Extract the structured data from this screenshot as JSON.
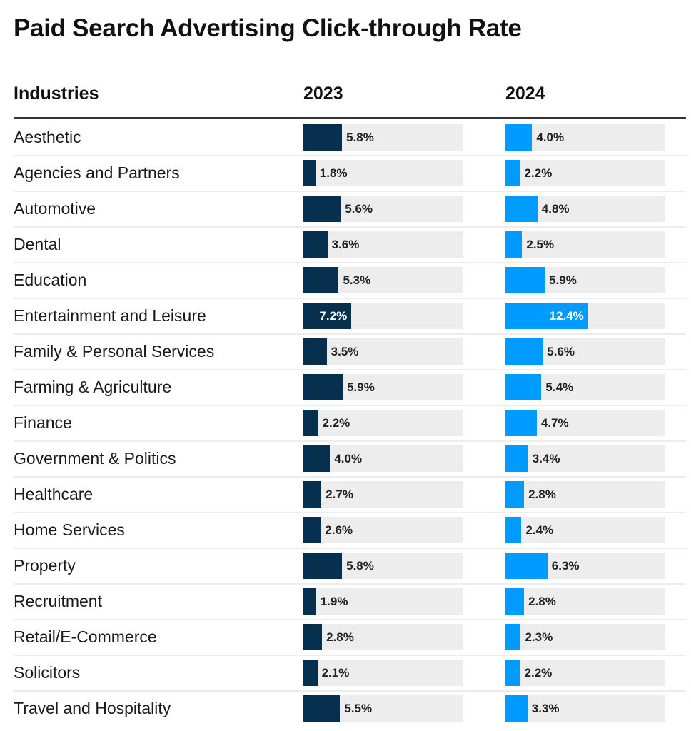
{
  "chart_data": {
    "type": "table",
    "title": "Paid Search Advertising Click-through Rate",
    "columns": [
      "Industries",
      "2023",
      "2024"
    ],
    "scale_max": 24,
    "unit": "%",
    "colors": {
      "2023": "#06304e",
      "2024": "#009bff",
      "track": "#ededed"
    },
    "rows": [
      {
        "industry": "Aesthetic",
        "v2023": 5.8,
        "v2024": 4.0
      },
      {
        "industry": "Agencies and Partners",
        "v2023": 1.8,
        "v2024": 2.2
      },
      {
        "industry": "Automotive",
        "v2023": 5.6,
        "v2024": 4.8
      },
      {
        "industry": "Dental",
        "v2023": 3.6,
        "v2024": 2.5
      },
      {
        "industry": "Education",
        "v2023": 5.3,
        "v2024": 5.9
      },
      {
        "industry": "Entertainment and Leisure",
        "v2023": 7.2,
        "v2024": 12.4
      },
      {
        "industry": "Family & Personal Services",
        "v2023": 3.5,
        "v2024": 5.6
      },
      {
        "industry": "Farming & Agriculture",
        "v2023": 5.9,
        "v2024": 5.4
      },
      {
        "industry": "Finance",
        "v2023": 2.2,
        "v2024": 4.7
      },
      {
        "industry": "Government & Politics",
        "v2023": 4.0,
        "v2024": 3.4
      },
      {
        "industry": "Healthcare",
        "v2023": 2.7,
        "v2024": 2.8
      },
      {
        "industry": "Home Services",
        "v2023": 2.6,
        "v2024": 2.4
      },
      {
        "industry": "Property",
        "v2023": 5.8,
        "v2024": 6.3
      },
      {
        "industry": "Recruitment",
        "v2023": 1.9,
        "v2024": 2.8
      },
      {
        "industry": "Retail/E-Commerce",
        "v2023": 2.8,
        "v2024": 2.3
      },
      {
        "industry": "Solicitors",
        "v2023": 2.1,
        "v2024": 2.2
      },
      {
        "industry": "Travel and Hospitality",
        "v2023": 5.5,
        "v2024": 3.3
      }
    ]
  }
}
